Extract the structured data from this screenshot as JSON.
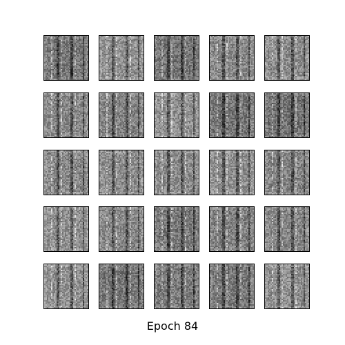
{
  "figure": {
    "caption": "Epoch 84",
    "rows": 5,
    "columns": 5,
    "colors": {
      "background": "#ffffff",
      "panel_border": "#000000",
      "texture_base": "#999999",
      "texture_dark": "#2a2a2a",
      "texture_light": "#e6e6e6"
    }
  }
}
